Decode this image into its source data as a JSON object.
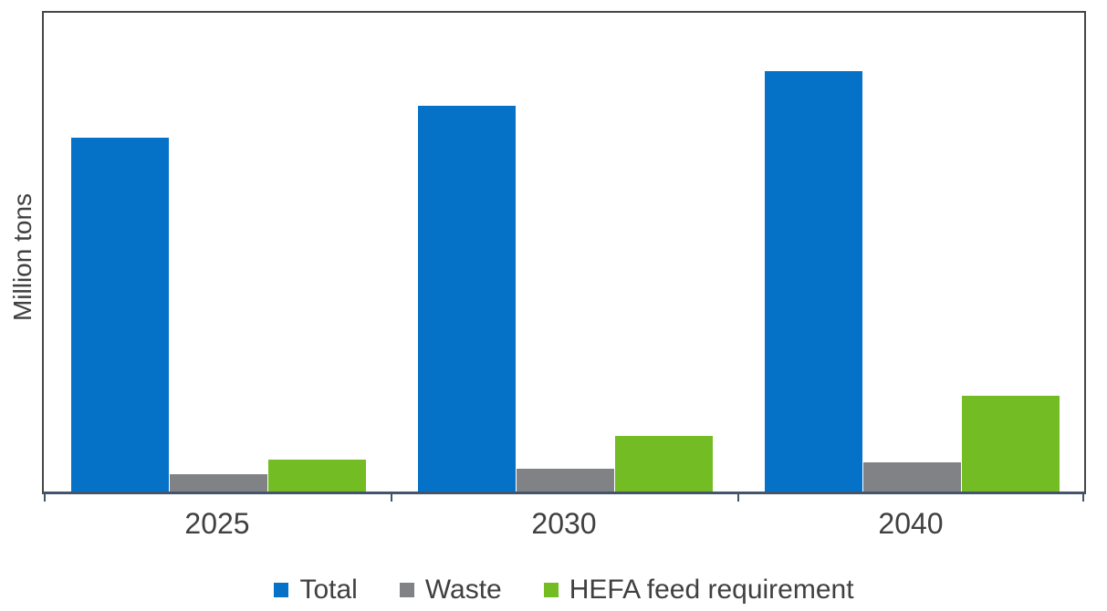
{
  "chart_data": {
    "type": "bar",
    "title": "",
    "xlabel": "",
    "ylabel": "Million tons",
    "categories": [
      "2025",
      "2030",
      "2040"
    ],
    "series": [
      {
        "name": "Total",
        "color": "#0572c8",
        "values": [
          74.0,
          80.6,
          87.8
        ]
      },
      {
        "name": "Waste",
        "color": "#808285",
        "values": [
          3.6,
          4.8,
          6.1
        ]
      },
      {
        "name": "HEFA feed requirement",
        "color": "#73bc23",
        "values": [
          6.7,
          11.6,
          20.0
        ]
      }
    ],
    "ylim": [
      0,
      100
    ],
    "y_axis_note": "y-axis has no tick labels or gridlines; values are estimated as percent of full axis height",
    "grid": false,
    "legend_position": "bottom",
    "axis_color": "#44546a",
    "border_color": "#464646"
  }
}
